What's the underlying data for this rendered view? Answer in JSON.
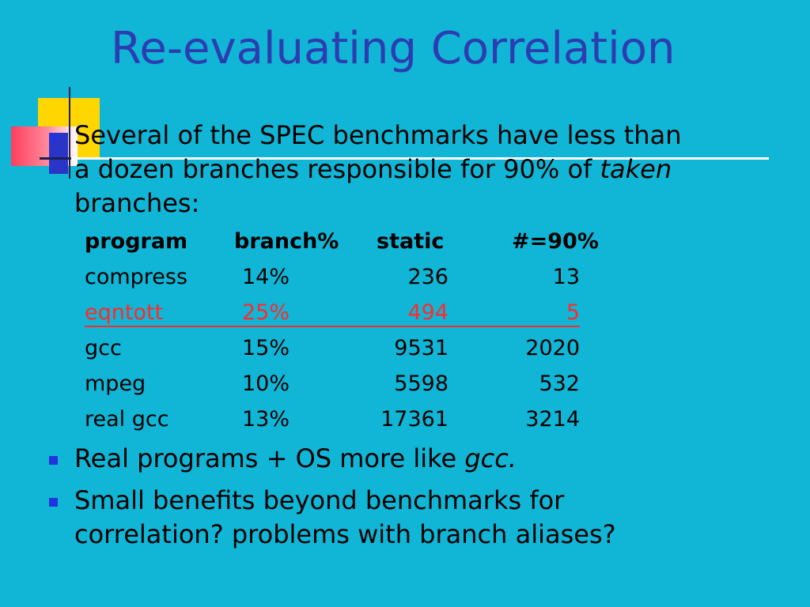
{
  "slide": {
    "title": "Re-evaluating Correlation",
    "bullet1": {
      "line1": "Several of the SPEC benchmarks have less than",
      "line2_prefix": "a dozen branches responsible for 90% of ",
      "line2_emph": "taken",
      "line3": "branches:"
    },
    "table": {
      "headers": [
        "program",
        "branch%",
        "static",
        "#=90%"
      ],
      "rows": [
        {
          "program": "compress",
          "branch": "14%",
          "static": "236",
          "n90": "13"
        },
        {
          "program": "eqntott",
          "branch": "25%",
          "static": "494",
          "n90": "5"
        },
        {
          "program": "gcc",
          "branch": "15%",
          "static": "9531",
          "n90": "2020"
        },
        {
          "program": "mpeg",
          "branch": "10%",
          "static": "5598",
          "n90": "532"
        },
        {
          "program": "real gcc",
          "branch": "13%",
          "static": "17361",
          "n90": "3214"
        }
      ]
    },
    "bullet2": {
      "prefix": "Real programs + OS more like ",
      "emph": "gcc."
    },
    "bullet3": {
      "line1": "Small benefits beyond benchmarks for",
      "line2": "correlation? problems with branch aliases?"
    }
  },
  "colors": {
    "background": "#11b5d6",
    "title": "#2b3db0",
    "bullet": "#2233dd",
    "highlight": "#ff2a2a"
  }
}
